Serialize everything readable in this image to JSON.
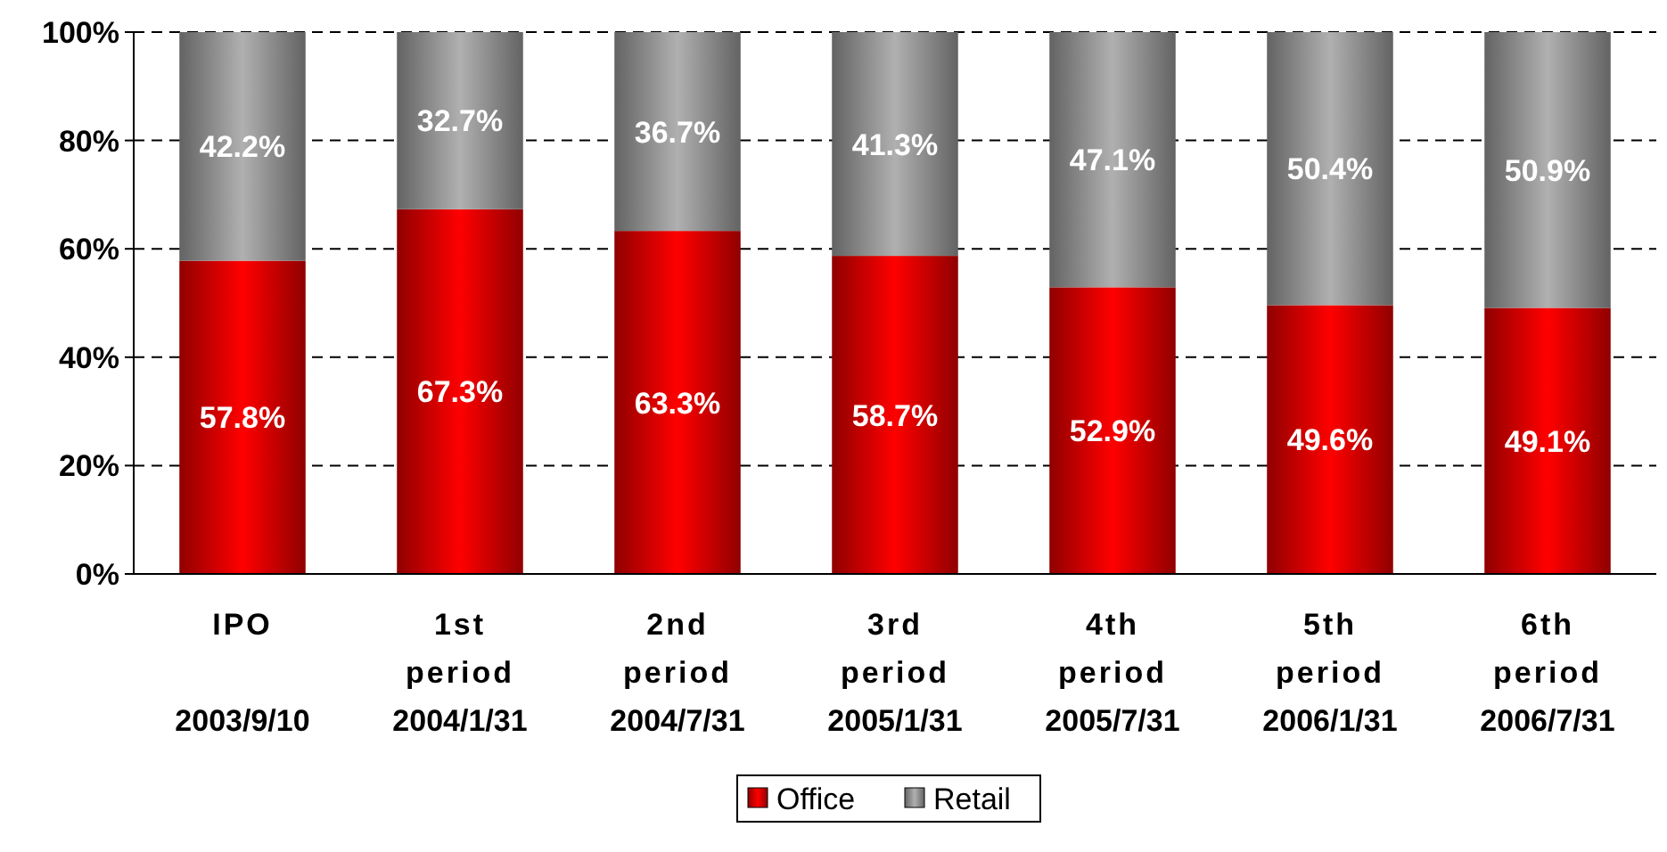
{
  "chart_data": {
    "type": "bar",
    "stacked": true,
    "categories": [
      "IPO\n2003/9/10",
      "1st\nperiod\n2004/1/31",
      "2nd\nperiod\n2004/7/31",
      "3rd\nperiod\n2005/1/31",
      "4th\nperiod\n2005/7/31",
      "5th\nperiod\n2006/1/31",
      "6th\nperiod\n2006/7/31"
    ],
    "series": [
      {
        "name": "Office",
        "color": "#ff0000",
        "values": [
          57.8,
          67.3,
          63.3,
          58.7,
          52.9,
          49.6,
          49.1
        ]
      },
      {
        "name": "Retail",
        "color": "#b0b0b0",
        "values": [
          42.2,
          32.7,
          36.7,
          41.3,
          47.1,
          50.4,
          50.9
        ]
      }
    ],
    "value_labels": [
      [
        "57.8%",
        "67.3%",
        "63.3%",
        "58.7%",
        "52.9%",
        "49.6%",
        "49.1%"
      ],
      [
        "42.2%",
        "32.7%",
        "36.7%",
        "41.3%",
        "47.1%",
        "50.4%",
        "50.9%"
      ]
    ],
    "ylim": [
      0,
      100
    ],
    "yticks": [
      {
        "value": 0,
        "label": "0%"
      },
      {
        "value": 20,
        "label": "20%"
      },
      {
        "value": 40,
        "label": "40%"
      },
      {
        "value": 60,
        "label": "60%"
      },
      {
        "value": 80,
        "label": "80%"
      },
      {
        "value": 100,
        "label": "100%"
      }
    ],
    "grid": "y",
    "legend": "bottom"
  }
}
